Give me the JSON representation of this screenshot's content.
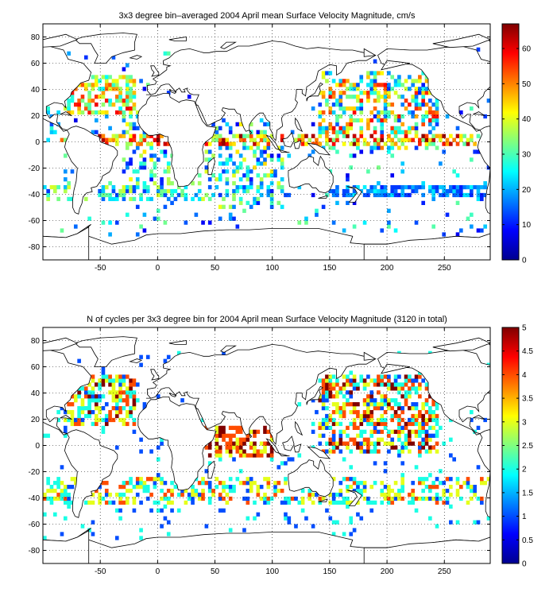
{
  "chart_data": [
    {
      "type": "heatmap",
      "title": "3x3 degree bin–averaged 2004 April mean Surface Velocity Magnitude, cm/s",
      "xlabel": "",
      "ylabel": "",
      "xlim": [
        -100,
        290
      ],
      "ylim": [
        -90,
        90
      ],
      "x_ticks": [
        -50,
        0,
        50,
        100,
        150,
        200,
        250
      ],
      "y_ticks": [
        80,
        60,
        40,
        20,
        0,
        -20,
        -40,
        -60,
        -80
      ],
      "grid": true,
      "bin_size_deg": 3,
      "colorbar": {
        "min": 0,
        "max": 67,
        "ticks": [
          0,
          10,
          20,
          30,
          40,
          50,
          60
        ],
        "colormap": "jet",
        "placement": "right"
      },
      "regions": [
        {
          "name": "",
          "lon": [
            -82,
            -20
          ],
          "lat": [
            20,
            52
          ],
          "value_range": [
            25,
            60
          ],
          "density": 0.55
        },
        {
          "name": "",
          "lon": [
            -30,
            20
          ],
          "lat": [
            -45,
            25
          ],
          "value_range": [
            8,
            45
          ],
          "density": 0.3
        },
        {
          "name": "",
          "lon": [
            40,
            110
          ],
          "lat": [
            -50,
            15
          ],
          "value_range": [
            8,
            45
          ],
          "density": 0.35
        },
        {
          "name": "",
          "lon": [
            140,
            245
          ],
          "lat": [
            -5,
            55
          ],
          "value_range": [
            10,
            60
          ],
          "density": 0.45
        },
        {
          "name": "",
          "lon": [
            150,
            290
          ],
          "lat": [
            -42,
            -32
          ],
          "value_range": [
            10,
            25
          ],
          "density": 0.7
        },
        {
          "name": "",
          "lon": [
            -100,
            100
          ],
          "lat": [
            -45,
            -30
          ],
          "value_range": [
            10,
            40
          ],
          "density": 0.45
        },
        {
          "name": "",
          "lon": [
            -85,
            290
          ],
          "lat": [
            -2,
            5
          ],
          "value_range": [
            30,
            67
          ],
          "density": 0.55
        }
      ]
    },
    {
      "type": "heatmap",
      "title": "N of cycles per 3x3 degree bin for 2004 April mean Surface Velocity Magnitude (3120 in total)",
      "xlabel": "",
      "ylabel": "",
      "xlim": [
        -100,
        290
      ],
      "ylim": [
        -90,
        90
      ],
      "x_ticks": [
        -50,
        0,
        50,
        100,
        150,
        200,
        250
      ],
      "y_ticks": [
        80,
        60,
        40,
        20,
        0,
        -20,
        -40,
        -60,
        -80
      ],
      "grid": true,
      "bin_size_deg": 3,
      "colorbar": {
        "min": 0,
        "max": 5,
        "ticks": [
          0,
          0.5,
          1,
          1.5,
          2,
          2.5,
          3,
          3.5,
          4,
          4.5,
          5
        ],
        "colormap": "jet",
        "placement": "right"
      },
      "total_cycles": 3120,
      "value_levels": [
        1,
        2,
        3,
        4,
        5
      ],
      "regions": [
        {
          "name": "",
          "lon": [
            -82,
            -20
          ],
          "lat": [
            15,
            55
          ],
          "value_range": [
            1,
            5
          ],
          "density": 0.6
        },
        {
          "name": "",
          "lon": [
            40,
            100
          ],
          "lat": [
            -10,
            15
          ],
          "value_range": [
            3,
            5
          ],
          "density": 0.6
        },
        {
          "name": "",
          "lon": [
            140,
            245
          ],
          "lat": [
            -5,
            55
          ],
          "value_range": [
            1,
            5
          ],
          "density": 0.55
        },
        {
          "name": "",
          "lon": [
            -100,
            290
          ],
          "lat": [
            -45,
            -25
          ],
          "value_range": [
            1,
            4
          ],
          "density": 0.45
        }
      ]
    }
  ]
}
